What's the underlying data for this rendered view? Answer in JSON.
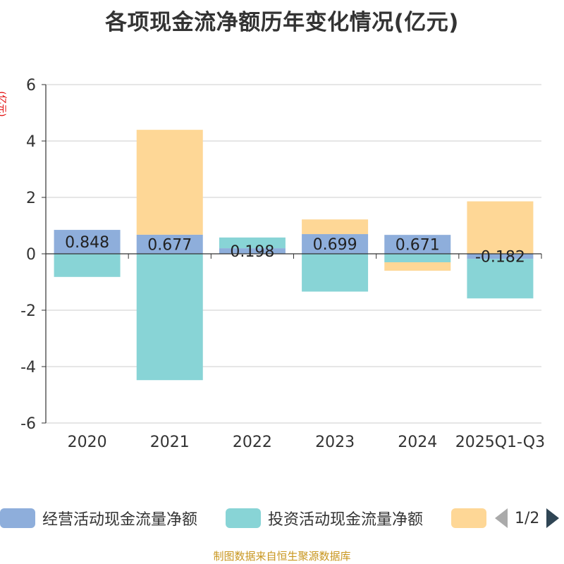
{
  "title": "各项现金流净额历年变化情况(亿元)",
  "y_unit": "(亿元)",
  "source": "制图数据来自恒生聚源数据库",
  "legend_pager": {
    "text": "1/2"
  },
  "chart_data": {
    "type": "bar",
    "stacked": true,
    "categories": [
      "2020",
      "2021",
      "2022",
      "2023",
      "2024",
      "2025Q1-Q3"
    ],
    "ylim": [
      -6,
      6
    ],
    "yticks": [
      6,
      4,
      2,
      0,
      -2,
      -4,
      -6
    ],
    "grid": true,
    "legend_position": "bottom",
    "series": [
      {
        "name": "经营活动现金流量净额",
        "color": "#8eaedb",
        "values": [
          0.848,
          0.677,
          0.198,
          0.699,
          0.671,
          -0.182
        ]
      },
      {
        "name": "投资活动现金流量净额",
        "color": "#88d4d6",
        "values": [
          -0.82,
          -4.48,
          0.38,
          -1.34,
          -0.3,
          -1.4
        ]
      },
      {
        "name": "",
        "color": "#fed796",
        "values": [
          0.0,
          3.72,
          0.0,
          0.52,
          -0.3,
          1.86
        ]
      }
    ],
    "data_labels": [
      "0.848",
      "0.677",
      "0.198",
      "0.699",
      "0.671",
      "-0.182"
    ]
  }
}
